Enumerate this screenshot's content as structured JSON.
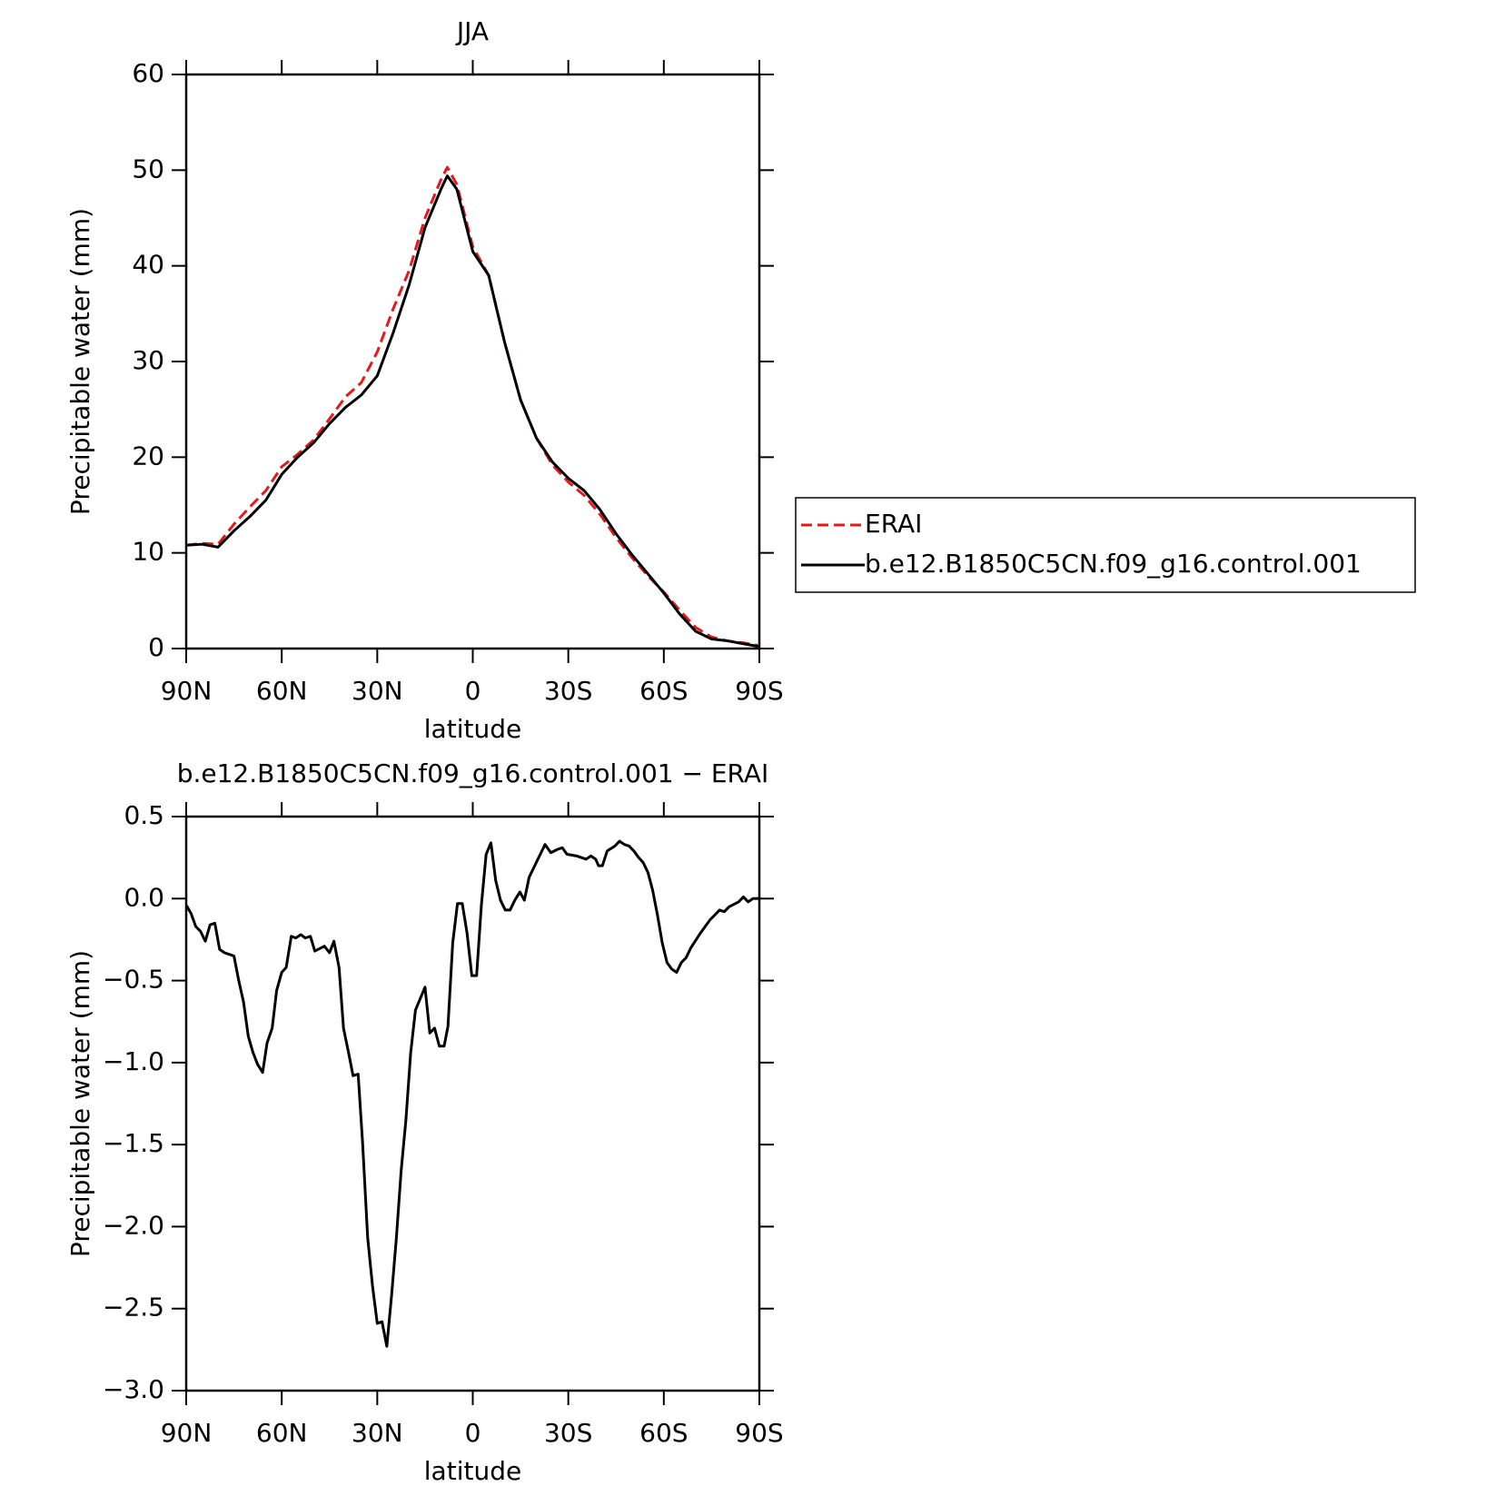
{
  "chart_data": [
    {
      "type": "line",
      "title": "JJA",
      "xlabel": "latitude",
      "ylabel": "Precipitable water (mm)",
      "x": [
        90,
        85,
        80,
        75,
        70,
        65,
        60,
        55,
        50,
        45,
        40,
        35,
        30,
        25,
        20,
        15,
        10,
        8,
        5,
        0,
        -5,
        -10,
        -15,
        -20,
        -25,
        -30,
        -35,
        -40,
        -45,
        -50,
        -55,
        -60,
        -65,
        -70,
        -75,
        -80,
        -85,
        -90
      ],
      "series": [
        {
          "name": "ERAI",
          "color": "#e41a1c",
          "linestyle": "dashed",
          "values": [
            10.8,
            11.0,
            10.9,
            13.0,
            14.8,
            16.5,
            19.0,
            20.3,
            21.8,
            24.0,
            26.3,
            27.8,
            31.0,
            35.5,
            39.5,
            45.0,
            49.0,
            50.3,
            48.5,
            42.0,
            39.0,
            32.0,
            26.0,
            22.0,
            19.2,
            17.4,
            16.0,
            14.0,
            11.6,
            9.5,
            7.6,
            5.9,
            4.0,
            2.2,
            1.2,
            0.8,
            0.6,
            0.3
          ]
        },
        {
          "name": "b.e12.B1850C5CN.f09_g16.control.001",
          "color": "#000000",
          "linestyle": "solid",
          "values": [
            10.8,
            10.9,
            10.6,
            12.3,
            13.8,
            15.5,
            18.2,
            20.0,
            21.5,
            23.5,
            25.2,
            26.5,
            28.5,
            33.0,
            38.0,
            44.0,
            48.0,
            49.4,
            48.0,
            41.5,
            39.0,
            32.0,
            26.0,
            22.0,
            19.5,
            17.8,
            16.5,
            14.5,
            12.0,
            9.8,
            7.8,
            5.8,
            3.6,
            1.8,
            1.0,
            0.8,
            0.5,
            0.2
          ]
        }
      ],
      "xlim": [
        90,
        -90
      ],
      "xticks": [
        {
          "value": 90,
          "label": "90N"
        },
        {
          "value": 60,
          "label": "60N"
        },
        {
          "value": 30,
          "label": "30N"
        },
        0,
        {
          "value": -30,
          "label": "30S"
        },
        {
          "value": -60,
          "label": "60S"
        },
        {
          "value": -90,
          "label": "90S"
        }
      ],
      "ylim": [
        0,
        60
      ],
      "yticks": [
        0,
        10,
        20,
        30,
        40,
        50,
        60
      ],
      "legend": "right"
    },
    {
      "type": "line",
      "title": "b.e12.B1850C5CN.f09_g16.control.001 − ERAI",
      "xlabel": "latitude",
      "ylabel": "Precipitable water (mm)",
      "x": [
        90,
        88.5,
        87,
        85.5,
        84,
        82.5,
        81,
        79.5,
        78,
        75,
        73.5,
        72,
        70.5,
        69,
        67.6,
        66,
        64.6,
        63,
        61.6,
        60,
        58.6,
        57,
        55.6,
        54,
        52.6,
        51,
        49.6,
        46.6,
        45,
        43.6,
        42,
        40.6,
        39,
        37.6,
        36,
        34.6,
        33,
        31.5,
        30,
        28.5,
        27,
        25.5,
        24,
        22.5,
        21,
        19.5,
        18,
        16.5,
        15,
        13.5,
        12,
        10.5,
        9,
        7.8,
        6.3,
        4.8,
        3.3,
        1.8,
        0.3,
        -1.2,
        -2.7,
        -4.2,
        -5.7,
        -7.2,
        -8.7,
        -10.2,
        -11.7,
        -13.2,
        -14.8,
        -16.2,
        -17.7,
        -20.7,
        -22.7,
        -24.5,
        -26.6,
        -28.1,
        -29.6,
        -32.6,
        -35.6,
        -37.1,
        -38.6,
        -39.5,
        -40.7,
        -42.2,
        -44.6,
        -46.1,
        -47.6,
        -49.1,
        -50.6,
        -52.1,
        -53.5,
        -55,
        -56.5,
        -58,
        -59.5,
        -61,
        -62.5,
        -64,
        -65.5,
        -67,
        -68.5,
        -71.5,
        -74.5,
        -77.5,
        -79,
        -80.5,
        -83.5,
        -85,
        -86.5,
        -88,
        -90
      ],
      "series": [
        {
          "color": "#000000",
          "linestyle": "solid",
          "values": [
            -0.04,
            -0.09,
            -0.17,
            -0.2,
            -0.26,
            -0.16,
            -0.15,
            -0.31,
            -0.33,
            -0.35,
            -0.5,
            -0.63,
            -0.84,
            -0.94,
            -1.01,
            -1.06,
            -0.88,
            -0.79,
            -0.56,
            -0.45,
            -0.42,
            -0.23,
            -0.24,
            -0.22,
            -0.24,
            -0.23,
            -0.32,
            -0.29,
            -0.33,
            -0.26,
            -0.42,
            -0.79,
            -0.94,
            -1.08,
            -1.07,
            -1.49,
            -2.07,
            -2.36,
            -2.59,
            -2.58,
            -2.73,
            -2.42,
            -2.07,
            -1.66,
            -1.35,
            -0.94,
            -0.68,
            -0.61,
            -0.54,
            -0.82,
            -0.79,
            -0.9,
            -0.9,
            -0.78,
            -0.27,
            -0.03,
            -0.03,
            -0.21,
            -0.47,
            -0.47,
            -0.04,
            0.27,
            0.34,
            0.11,
            -0.01,
            -0.07,
            -0.07,
            -0.01,
            0.04,
            -0.01,
            0.13,
            0.25,
            0.33,
            0.28,
            0.3,
            0.31,
            0.27,
            0.26,
            0.24,
            0.26,
            0.24,
            0.2,
            0.2,
            0.29,
            0.32,
            0.35,
            0.33,
            0.32,
            0.29,
            0.25,
            0.22,
            0.16,
            0.05,
            -0.1,
            -0.27,
            -0.39,
            -0.43,
            -0.45,
            -0.39,
            -0.36,
            -0.3,
            -0.21,
            -0.13,
            -0.07,
            -0.08,
            -0.05,
            -0.02,
            0.01,
            -0.02,
            0,
            0
          ]
        }
      ],
      "xlim": [
        90,
        -90
      ],
      "xticks": [
        {
          "value": 90,
          "label": "90N"
        },
        {
          "value": 60,
          "label": "60N"
        },
        {
          "value": 30,
          "label": "30N"
        },
        0,
        {
          "value": -30,
          "label": "30S"
        },
        {
          "value": -60,
          "label": "60S"
        },
        {
          "value": -90,
          "label": "90S"
        }
      ],
      "ylim": [
        -3,
        0.5
      ],
      "yticks": [
        {
          "value": -3,
          "label": "−3.0"
        },
        {
          "value": -2.5,
          "label": "−2.5"
        },
        {
          "value": -2,
          "label": "−2.0"
        },
        {
          "value": -1.5,
          "label": "−1.5"
        },
        {
          "value": -1,
          "label": "−1.0"
        },
        {
          "value": -0.5,
          "label": "−0.5"
        },
        {
          "value": 0,
          "label": "0.0"
        },
        0.5
      ]
    }
  ]
}
